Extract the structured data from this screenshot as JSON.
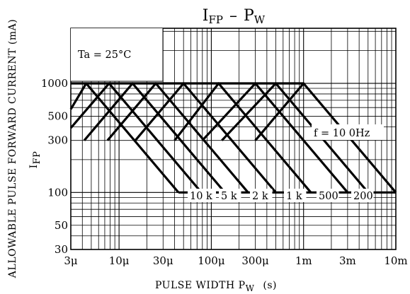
{
  "chart_data": {
    "type": "line",
    "title_main": "I",
    "title_sub": "FP",
    "title_dash": "–",
    "title_main2": "P",
    "title_sub2": "W",
    "xlabel_main": "PULSE WIDTH  P",
    "xlabel_sub": "W",
    "xlabel_unit": "(s)",
    "ylabel_line1_main": "I",
    "ylabel_line1_sub": "FP",
    "ylabel_line2": "ALLOWABLE PULSE FORWARD CURRENT  (mA)",
    "x_scale": "log",
    "y_scale": "log",
    "xlim": [
      3e-06,
      0.01
    ],
    "ylim": [
      30,
      3200
    ],
    "x_ticks": [
      {
        "value": 3e-06,
        "label": "3μ"
      },
      {
        "value": 1e-05,
        "label": "10μ"
      },
      {
        "value": 3e-05,
        "label": "30μ"
      },
      {
        "value": 0.0001,
        "label": "100μ"
      },
      {
        "value": 0.0003,
        "label": "300μ"
      },
      {
        "value": 0.001,
        "label": "1m"
      },
      {
        "value": 0.003,
        "label": "3m"
      },
      {
        "value": 0.01,
        "label": "10m"
      }
    ],
    "y_ticks": [
      {
        "value": 30,
        "label": "30"
      },
      {
        "value": 50,
        "label": "50"
      },
      {
        "value": 100,
        "label": "100"
      },
      {
        "value": 300,
        "label": "300"
      },
      {
        "value": 500,
        "label": "500"
      },
      {
        "value": 1000,
        "label": "1000"
      }
    ],
    "grid": true,
    "annotation_ta": "Ta = 25°C",
    "freq_prefix": "f = ",
    "series": [
      {
        "name": "10 k",
        "x": [
          3e-06,
          4.4e-06,
          4.4e-05
        ],
        "y": [
          580,
          1000,
          100
        ]
      },
      {
        "name": "5 k",
        "x": [
          3e-06,
          7.8e-06,
          7.8e-05
        ],
        "y": [
          390,
          1000,
          100
        ]
      },
      {
        "name": "2 k",
        "x": [
          4.2e-06,
          1.4e-05,
          0.00014
        ],
        "y": [
          300,
          1000,
          100
        ]
      },
      {
        "name": "1 k",
        "x": [
          7.5e-06,
          2.5e-05,
          0.00025
        ],
        "y": [
          300,
          1000,
          100
        ]
      },
      {
        "name": "500",
        "x": [
          1.5e-05,
          5e-05,
          0.0005
        ],
        "y": [
          300,
          1000,
          100
        ]
      },
      {
        "name": "200",
        "x": [
          4e-05,
          0.00012,
          0.0012
        ],
        "y": [
          300,
          1000,
          100
        ]
      },
      {
        "name": "10 0Hz",
        "x": [
          8e-05,
          0.0003,
          0.003
        ],
        "y": [
          300,
          1000,
          100
        ]
      },
      {
        "name": "",
        "x": [
          0.00013,
          0.0005,
          0.005
        ],
        "y": [
          300,
          1000,
          100
        ]
      },
      {
        "name": "",
        "x": [
          0.0003,
          0.001,
          0.01
        ],
        "y": [
          300,
          1000,
          100
        ]
      }
    ],
    "limit_lines": [
      {
        "y": 1000,
        "x": [
          3e-06,
          0.001
        ]
      },
      {
        "y": 100,
        "x": [
          4.4e-05,
          0.01
        ]
      }
    ],
    "bottom_labels": [
      "10 k",
      "5 k",
      "2 k",
      "1 k",
      "500",
      "200"
    ],
    "top_label": "10 0Hz"
  }
}
